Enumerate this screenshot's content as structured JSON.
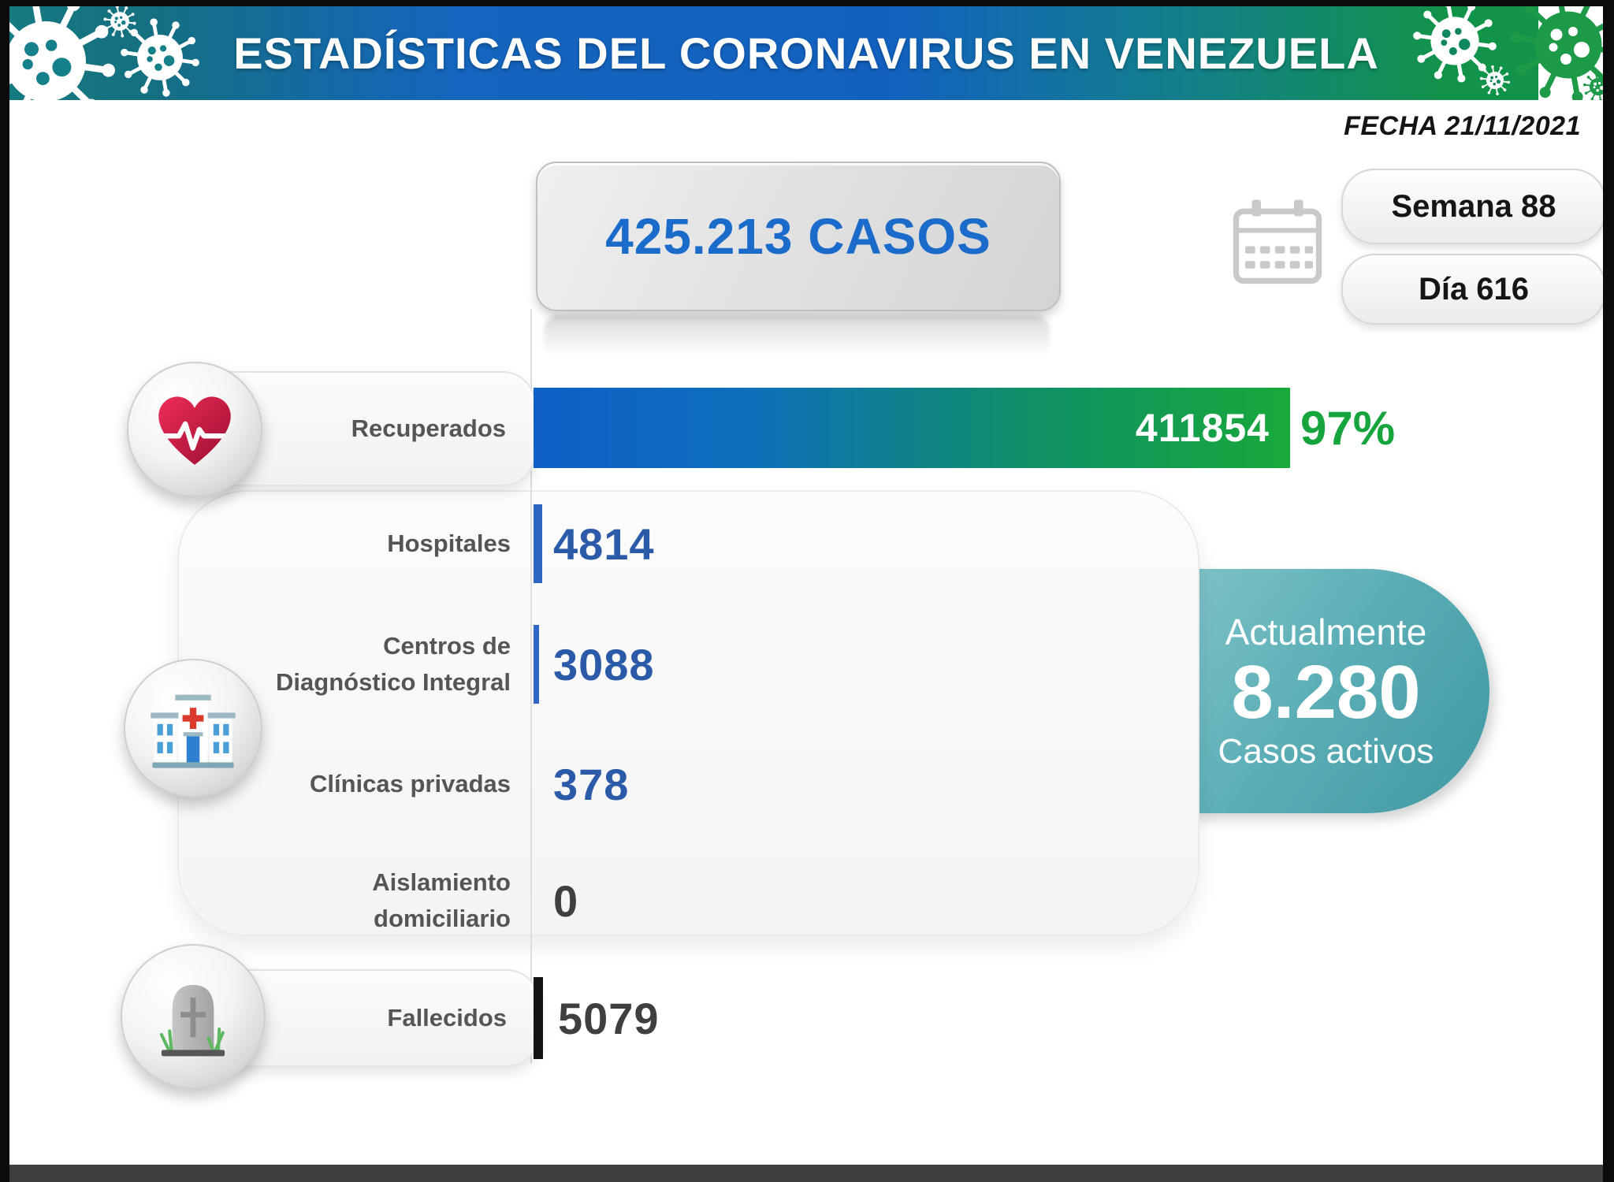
{
  "header": {
    "title": "ESTADÍSTICAS DEL CORONAVIRUS EN VENEZUELA"
  },
  "meta": {
    "date": "FECHA 21/11/2021",
    "week": "Semana 88",
    "day": "Día 616"
  },
  "total": {
    "text": "425.213 CASOS"
  },
  "active": {
    "prefix": "Actualmente",
    "value": "8.280",
    "suffix": "Casos activos"
  },
  "rows": [
    {
      "label": "Recuperados",
      "value": "411854",
      "pct": "97%"
    },
    {
      "label": "Hospitales",
      "value": "4814"
    },
    {
      "label": "Centros de Diagnóstico Integral",
      "value": "3088"
    },
    {
      "label": "Clínicas privadas",
      "value": "378"
    },
    {
      "label": "Aislamiento domiciliario",
      "value": "0"
    },
    {
      "label": "Fallecidos",
      "value": "5079"
    }
  ],
  "icons": {
    "heart": "heart-pulse-icon",
    "hospital": "hospital-icon",
    "tombstone": "tombstone-icon",
    "calendar": "calendar-icon",
    "decor": "virus-icon"
  },
  "colors": {
    "header_gradient": [
      "#157a82",
      "#1465bd",
      "#12934a"
    ],
    "bar_blue": "#0f5fc6",
    "bar_green": "#18a93a",
    "percent_green": "#16a43c",
    "value_blue": "#2a5aa8",
    "value_dark": "#3f3f3f",
    "deaths_bar": "#141414",
    "total_text": "#1b6cca",
    "badge_teal": "#4d9fa8"
  },
  "chart_data": {
    "type": "bar",
    "orientation": "horizontal",
    "title": "ESTADÍSTICAS DEL CORONAVIRUS EN VENEZUELA",
    "date": "21/11/2021",
    "total_cases": 425213,
    "categories": [
      "Recuperados",
      "Hospitales",
      "Centros de Diagnóstico Integral",
      "Clínicas privadas",
      "Aislamiento domiciliario",
      "Fallecidos"
    ],
    "values": [
      411854,
      4814,
      3088,
      378,
      0,
      5079
    ],
    "recovered_percent": 97,
    "active_cases": 8280,
    "week": 88,
    "day": 616,
    "xlim": [
      0,
      425213
    ],
    "grid": false,
    "legend": "none"
  }
}
